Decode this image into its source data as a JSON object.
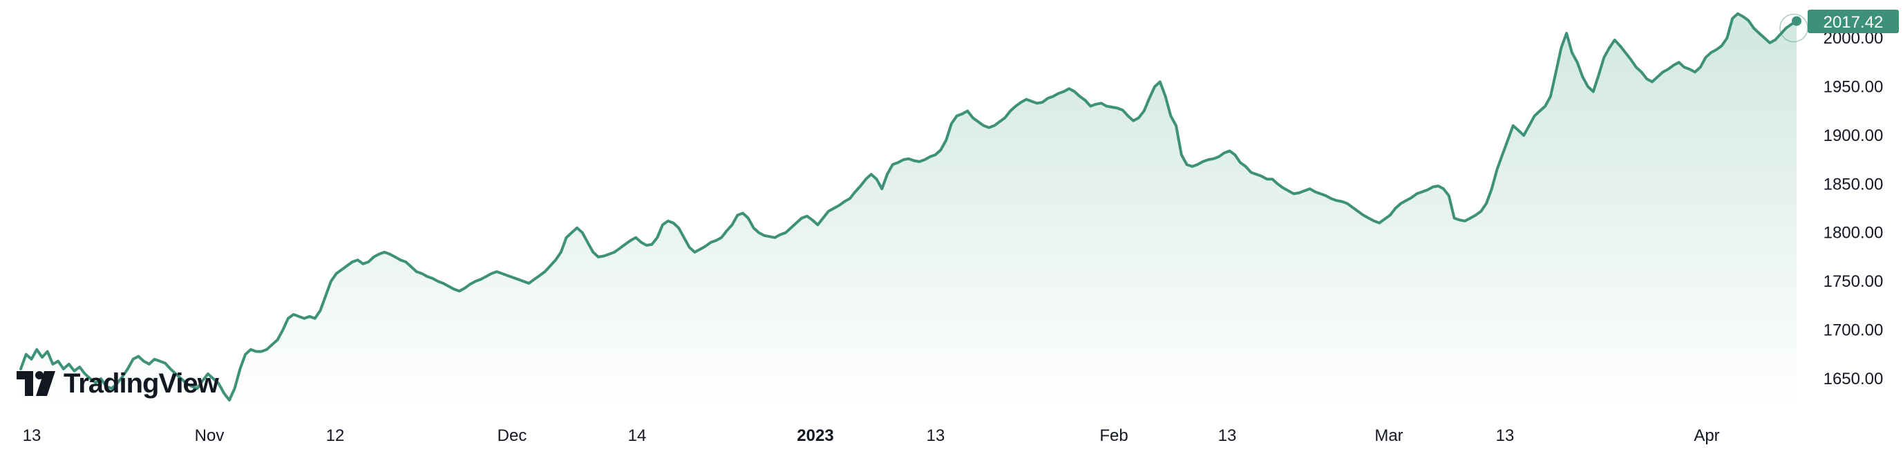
{
  "branding": {
    "name": "TradingView",
    "logo_icon": "tradingview-logo-icon"
  },
  "colors": {
    "line": "#3d9179",
    "area_top": "#cfe6df",
    "area_bottom": "#ffffff",
    "label_bg": "#3d9179",
    "label_text": "#ffffff",
    "axis_text": "#131722"
  },
  "chart_data": {
    "type": "area",
    "x_ticks": [
      "13",
      "Nov",
      "12",
      "Dec",
      "14",
      "2023",
      "13",
      "Feb",
      "13",
      "Mar",
      "13",
      "Apr"
    ],
    "x_ticks_bold": [
      "2023"
    ],
    "y_ticks": [
      "1650.00",
      "1700.00",
      "1750.00",
      "1800.00",
      "1850.00",
      "1900.00",
      "1950.00",
      "2000.00"
    ],
    "ylim": [
      1627,
      2029
    ],
    "last_value": "2017.42",
    "grid": false,
    "series": [
      {
        "values": [
          1660,
          1675,
          1670,
          1680,
          1672,
          1678,
          1665,
          1668,
          1660,
          1665,
          1658,
          1662,
          1655,
          1650,
          1646,
          1650,
          1642,
          1640,
          1645,
          1652,
          1660,
          1670,
          1673,
          1668,
          1665,
          1670,
          1668,
          1666,
          1660,
          1655,
          1650,
          1645,
          1642,
          1640,
          1648,
          1655,
          1650,
          1645,
          1635,
          1628,
          1640,
          1660,
          1675,
          1680,
          1678,
          1678,
          1680,
          1685,
          1690,
          1700,
          1712,
          1716,
          1714,
          1712,
          1714,
          1712,
          1720,
          1735,
          1750,
          1758,
          1762,
          1766,
          1770,
          1772,
          1768,
          1770,
          1775,
          1778,
          1780,
          1778,
          1775,
          1772,
          1770,
          1765,
          1760,
          1758,
          1755,
          1753,
          1750,
          1748,
          1745,
          1742,
          1740,
          1743,
          1747,
          1750,
          1752,
          1755,
          1758,
          1760,
          1758,
          1756,
          1754,
          1752,
          1750,
          1748,
          1752,
          1756,
          1760,
          1766,
          1772,
          1780,
          1795,
          1800,
          1805,
          1800,
          1790,
          1780,
          1775,
          1776,
          1778,
          1780,
          1784,
          1788,
          1792,
          1795,
          1790,
          1787,
          1788,
          1795,
          1808,
          1812,
          1810,
          1805,
          1795,
          1785,
          1780,
          1783,
          1786,
          1790,
          1792,
          1795,
          1802,
          1808,
          1818,
          1820,
          1815,
          1805,
          1800,
          1797,
          1796,
          1795,
          1798,
          1800,
          1805,
          1810,
          1815,
          1817,
          1813,
          1808,
          1815,
          1822,
          1825,
          1828,
          1832,
          1835,
          1842,
          1848,
          1855,
          1860,
          1855,
          1845,
          1860,
          1870,
          1872,
          1875,
          1876,
          1874,
          1873,
          1875,
          1878,
          1880,
          1885,
          1895,
          1912,
          1920,
          1922,
          1925,
          1918,
          1914,
          1910,
          1908,
          1910,
          1914,
          1918,
          1925,
          1930,
          1934,
          1937,
          1935,
          1933,
          1934,
          1938,
          1940,
          1943,
          1945,
          1948,
          1945,
          1940,
          1936,
          1930,
          1932,
          1933,
          1930,
          1929,
          1928,
          1926,
          1920,
          1915,
          1918,
          1925,
          1938,
          1950,
          1955,
          1940,
          1920,
          1910,
          1880,
          1870,
          1868,
          1870,
          1873,
          1875,
          1876,
          1878,
          1882,
          1884,
          1880,
          1872,
          1868,
          1862,
          1860,
          1858,
          1855,
          1855,
          1850,
          1846,
          1843,
          1840,
          1841,
          1843,
          1845,
          1842,
          1840,
          1838,
          1835,
          1833,
          1832,
          1830,
          1826,
          1822,
          1818,
          1815,
          1812,
          1810,
          1814,
          1818,
          1825,
          1830,
          1833,
          1836,
          1840,
          1842,
          1844,
          1847,
          1848,
          1845,
          1838,
          1815,
          1813,
          1812,
          1815,
          1818,
          1822,
          1830,
          1845,
          1865,
          1880,
          1895,
          1910,
          1905,
          1900,
          1910,
          1920,
          1925,
          1930,
          1940,
          1965,
          1990,
          2005,
          1985,
          1975,
          1960,
          1950,
          1945,
          1962,
          1980,
          1990,
          1998,
          1992,
          1985,
          1978,
          1970,
          1965,
          1958,
          1955,
          1960,
          1965,
          1968,
          1972,
          1975,
          1970,
          1968,
          1965,
          1970,
          1980,
          1985,
          1988,
          1992,
          2000,
          2020,
          2025,
          2022,
          2018,
          2010,
          2005,
          2000,
          1995,
          1998,
          2004,
          2010,
          2014,
          2017.42
        ]
      }
    ]
  }
}
